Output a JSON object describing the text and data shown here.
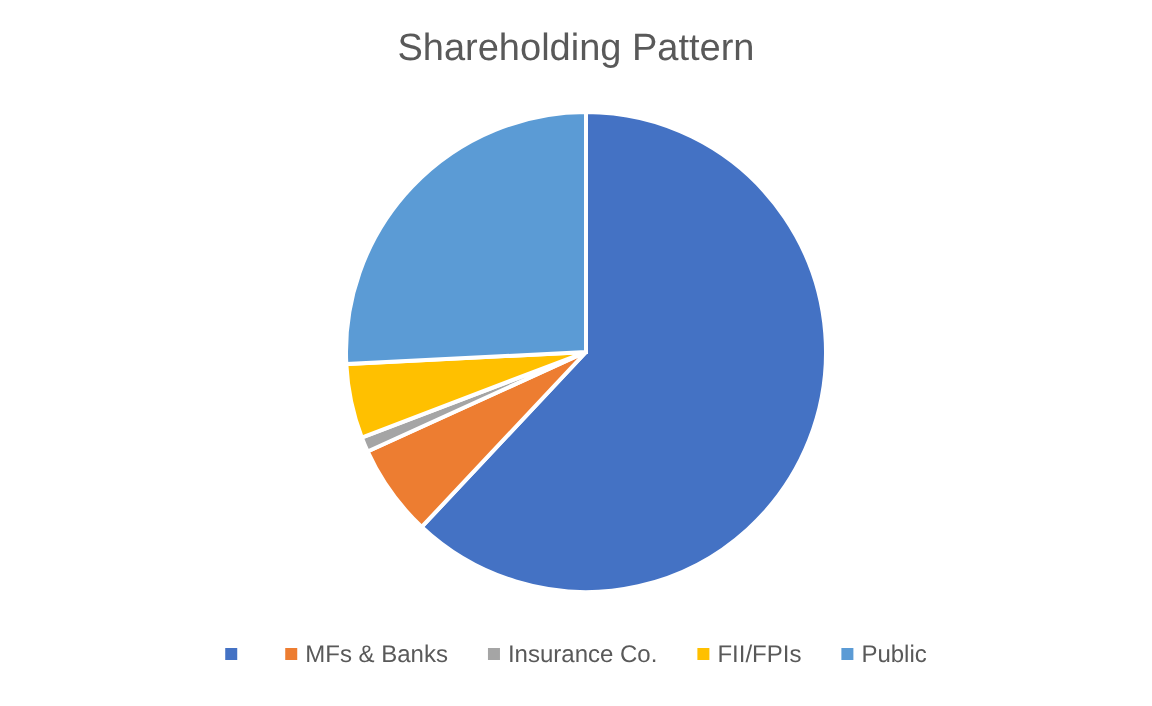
{
  "chart_data": {
    "type": "pie",
    "title": "Shareholding Pattern",
    "categories": [
      null,
      "MFs & Banks",
      "Insurance Co.",
      "FII/FPIs",
      "Public"
    ],
    "values": [
      62,
      6.2,
      1,
      5,
      25.8
    ],
    "colors": [
      "#4472c4",
      "#ed7d31",
      "#a5a5a5",
      "#ffc000",
      "#5b9bd5"
    ],
    "legend": "bottom"
  }
}
